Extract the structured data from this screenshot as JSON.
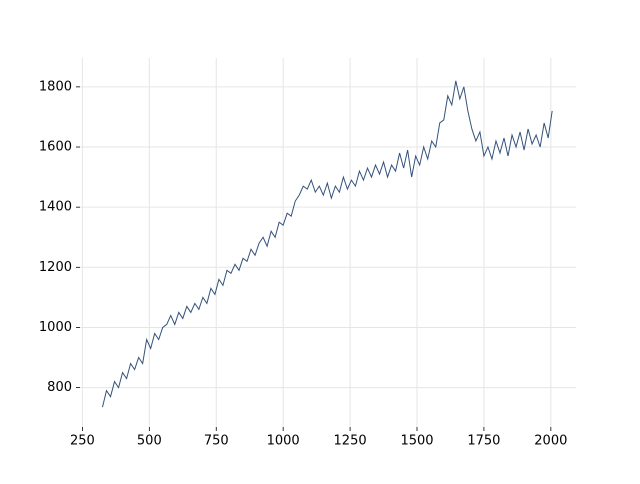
{
  "chart_data": {
    "type": "line",
    "x": [
      325,
      340,
      355,
      370,
      385,
      400,
      415,
      430,
      445,
      460,
      475,
      490,
      505,
      520,
      535,
      550,
      565,
      580,
      595,
      610,
      625,
      640,
      655,
      670,
      685,
      700,
      715,
      730,
      745,
      760,
      775,
      790,
      805,
      820,
      835,
      850,
      865,
      880,
      895,
      910,
      925,
      940,
      955,
      970,
      985,
      1000,
      1015,
      1030,
      1045,
      1060,
      1075,
      1090,
      1105,
      1120,
      1135,
      1150,
      1165,
      1180,
      1195,
      1210,
      1225,
      1240,
      1255,
      1270,
      1285,
      1300,
      1315,
      1330,
      1345,
      1360,
      1375,
      1390,
      1405,
      1420,
      1435,
      1450,
      1465,
      1480,
      1495,
      1510,
      1525,
      1540,
      1555,
      1570,
      1585,
      1600,
      1615,
      1630,
      1645,
      1660,
      1675,
      1690,
      1705,
      1720,
      1735,
      1750,
      1765,
      1780,
      1795,
      1810,
      1825,
      1840,
      1855,
      1870,
      1885,
      1900,
      1915,
      1930,
      1945,
      1960,
      1975,
      1990,
      2005
    ],
    "series": [
      {
        "color": "#34527a",
        "values": [
          735,
          790,
          770,
          820,
          800,
          850,
          830,
          880,
          860,
          900,
          880,
          960,
          930,
          980,
          960,
          1000,
          1010,
          1040,
          1010,
          1050,
          1030,
          1070,
          1050,
          1080,
          1060,
          1100,
          1080,
          1130,
          1110,
          1160,
          1140,
          1190,
          1180,
          1210,
          1190,
          1230,
          1220,
          1260,
          1240,
          1280,
          1300,
          1270,
          1320,
          1300,
          1350,
          1340,
          1380,
          1370,
          1420,
          1440,
          1470,
          1460,
          1490,
          1450,
          1470,
          1440,
          1480,
          1430,
          1470,
          1450,
          1500,
          1460,
          1490,
          1470,
          1520,
          1490,
          1530,
          1500,
          1540,
          1510,
          1550,
          1500,
          1540,
          1520,
          1580,
          1530,
          1590,
          1500,
          1570,
          1540,
          1600,
          1560,
          1620,
          1600,
          1680,
          1690,
          1770,
          1740,
          1820,
          1760,
          1800,
          1720,
          1660,
          1620,
          1650,
          1570,
          1600,
          1560,
          1620,
          1580,
          1630,
          1570,
          1640,
          1600,
          1650,
          1590,
          1660,
          1610,
          1640,
          1600,
          1680,
          1630,
          1720
        ]
      }
    ],
    "xlim": [
      241,
      2094
    ],
    "ylim": [
      669,
      1896
    ],
    "xticks": [
      250,
      500,
      750,
      1000,
      1250,
      1500,
      1750,
      2000
    ],
    "yticks": [
      800,
      1000,
      1200,
      1400,
      1600,
      1800
    ],
    "grid": true
  }
}
